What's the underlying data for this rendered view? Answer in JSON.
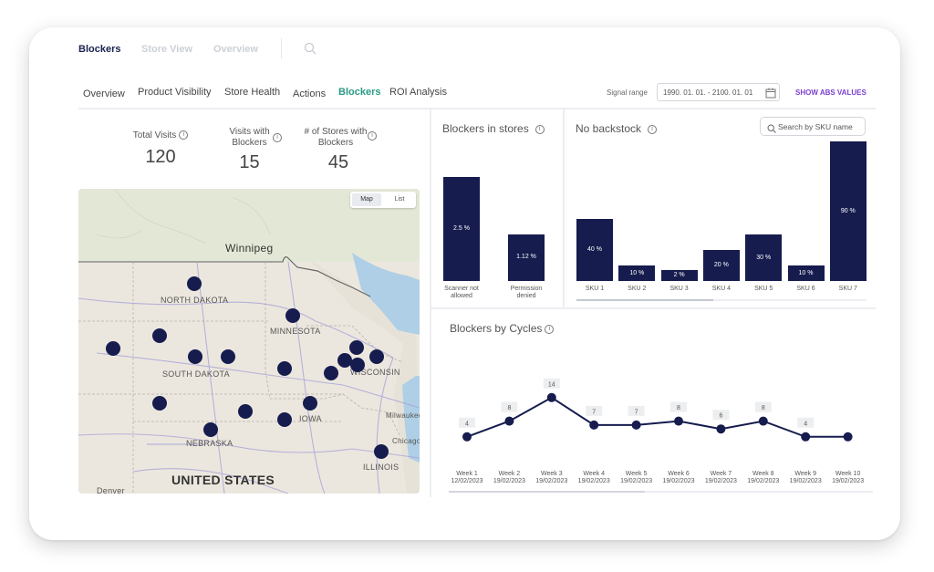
{
  "top_tabs": [
    "Blockers",
    "Store View",
    "Overview"
  ],
  "sub_tabs": [
    "Overview",
    "Product Visibility",
    "Store Health",
    "Actions",
    "Blockers",
    "ROI Analysis"
  ],
  "signal_range": {
    "label": "Signal range",
    "value": "1990. 01. 01. - 2100. 01. 01"
  },
  "show_abs_values": "SHOW ABS VALUES",
  "stats": [
    {
      "label": "Total Visits",
      "value": "120"
    },
    {
      "label": "Visits with Blockers",
      "value": "15"
    },
    {
      "label": "# of Stores with Blockers",
      "value": "45"
    }
  ],
  "map": {
    "toggle": [
      "Map",
      "List"
    ],
    "labels": [
      "Winnipeg",
      "NORTH DAKOTA",
      "MINNESOTA",
      "SOUTH DAKOTA",
      "WISCONSIN",
      "IOWA",
      "NEBRASKA",
      "ILLINOIS",
      "Milwaukee",
      "Chicago",
      "Denver",
      "UNITED STATES"
    ]
  },
  "blockers_in_stores": {
    "title": "Blockers in stores",
    "chart_data": {
      "type": "bar",
      "categories": [
        "Scanner not allowed",
        "Permission denied"
      ],
      "values": [
        2.5,
        1.12
      ],
      "value_labels": [
        "2.5 %",
        "1.12 %"
      ]
    }
  },
  "no_backstock": {
    "title": "No backstock",
    "search_placeholder": "Search by SKU name",
    "chart_data": {
      "type": "bar",
      "categories": [
        "SKU 1",
        "SKU 2",
        "SKU 3",
        "SKU 4",
        "SKU 5",
        "SKU 6",
        "SKU 7"
      ],
      "values": [
        40,
        10,
        2,
        20,
        30,
        10,
        90
      ],
      "value_labels": [
        "40 %",
        "10 %",
        "2 %",
        "20 %",
        "30 %",
        "10 %",
        "90 %"
      ]
    }
  },
  "blockers_by_cycles": {
    "title": "Blockers by Cycles",
    "chart_data": {
      "type": "line",
      "categories": [
        "Week 1",
        "Week 2",
        "Week 3",
        "Week 4",
        "Week 5",
        "Week 6",
        "Week 7",
        "Week 8",
        "Week 9",
        "Week 10"
      ],
      "dates": [
        "12/02/2023",
        "19/02/2023",
        "19/02/2023",
        "19/02/2023",
        "19/02/2023",
        "19/02/2023",
        "19/02/2023",
        "19/02/2023",
        "19/02/2023",
        "19/02/2023"
      ],
      "values": [
        4,
        8,
        14,
        7,
        7,
        8,
        6,
        8,
        4,
        4
      ],
      "point_labels": [
        "4",
        "8",
        "14",
        "7",
        "7",
        "8",
        "6",
        "8",
        "4",
        ""
      ]
    }
  },
  "colors": {
    "bar": "#161c4e",
    "accent": "#2a9a86",
    "link": "#7b3fd1"
  }
}
